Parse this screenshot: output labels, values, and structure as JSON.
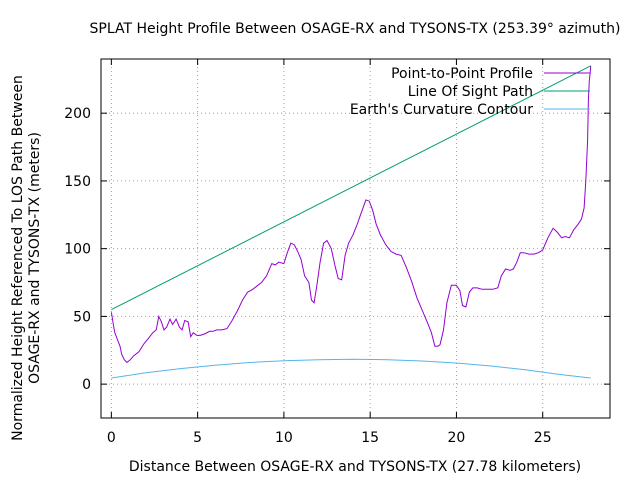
{
  "chart_data": {
    "type": "line",
    "title": "SPLAT Height Profile Between OSAGE-RX and TYSONS-TX (253.39° azimuth)",
    "xlabel": "Distance Between OSAGE-RX and TYSONS-TX (27.78 kilometers)",
    "ylabel_line1": "Normalized Height Referenced To LOS Path Between",
    "ylabel_line2": "OSAGE-RX and TYSONS-TX (meters)",
    "xlim": [
      -0.6,
      28.9
    ],
    "ylim": [
      -25,
      240
    ],
    "xticks": [
      0,
      5,
      10,
      15,
      20,
      25
    ],
    "yticks": [
      0,
      50,
      100,
      150,
      200
    ],
    "grid": true,
    "legend_position": "top-right",
    "series": [
      {
        "name": "Point-to-Point Profile",
        "color": "#9400d3",
        "x": [
          0,
          0.1,
          0.2,
          0.35,
          0.5,
          0.6,
          0.75,
          0.9,
          1.1,
          1.3,
          1.6,
          1.9,
          2.1,
          2.4,
          2.6,
          2.75,
          2.9,
          3.05,
          3.2,
          3.4,
          3.55,
          3.75,
          3.95,
          4.1,
          4.25,
          4.45,
          4.6,
          4.75,
          4.95,
          5.15,
          5.4,
          5.7,
          5.9,
          6.1,
          6.4,
          6.7,
          7.0,
          7.3,
          7.6,
          7.9,
          8.2,
          8.5,
          8.7,
          9.0,
          9.3,
          9.5,
          9.7,
          10.0,
          10.2,
          10.4,
          10.6,
          10.8,
          11.0,
          11.2,
          11.45,
          11.6,
          11.75,
          11.9,
          12.1,
          12.3,
          12.5,
          12.75,
          12.95,
          13.15,
          13.35,
          13.55,
          13.75,
          14.0,
          14.25,
          14.5,
          14.75,
          14.95,
          15.15,
          15.35,
          15.6,
          15.9,
          16.2,
          16.5,
          16.8,
          17.1,
          17.4,
          17.7,
          18.0,
          18.3,
          18.55,
          18.75,
          18.9,
          19.05,
          19.25,
          19.45,
          19.7,
          20.0,
          20.2,
          20.35,
          20.55,
          20.75,
          20.95,
          21.2,
          21.5,
          21.8,
          22.1,
          22.4,
          22.6,
          22.85,
          23.1,
          23.3,
          23.5,
          23.7,
          23.9,
          24.2,
          24.5,
          24.75,
          25.0,
          25.3,
          25.6,
          25.85,
          26.1,
          26.3,
          26.55,
          26.8,
          27.05,
          27.25,
          27.4,
          27.5,
          27.6,
          27.65,
          27.7,
          27.75,
          27.78
        ],
        "y": [
          53,
          45,
          38,
          33,
          28,
          22,
          18,
          16,
          18,
          21,
          24,
          30,
          33,
          38,
          40,
          50,
          46,
          40,
          42,
          48,
          44,
          48,
          42,
          40,
          47,
          46,
          35,
          38,
          36,
          36,
          37,
          39,
          39,
          40,
          40,
          41,
          47,
          54,
          62,
          68,
          70,
          73,
          75,
          80,
          89,
          88,
          90,
          89,
          97,
          104,
          103,
          98,
          92,
          80,
          75,
          62,
          60,
          72,
          90,
          104,
          106,
          100,
          88,
          78,
          77,
          95,
          104,
          110,
          118,
          127,
          136,
          135,
          128,
          118,
          110,
          103,
          98,
          96,
          95,
          86,
          76,
          64,
          55,
          46,
          38,
          28,
          28,
          29,
          40,
          60,
          73,
          73,
          69,
          58,
          57,
          68,
          71,
          71,
          70,
          70,
          70,
          71,
          80,
          85,
          84,
          85,
          90,
          97,
          97,
          96,
          96,
          97,
          99,
          108,
          115,
          112,
          108,
          109,
          108,
          114,
          118,
          122,
          130,
          150,
          180,
          210,
          224,
          230,
          235
        ]
      },
      {
        "name": "Line Of Sight Path",
        "color": "#009e73",
        "x": [
          0,
          27.78
        ],
        "y": [
          55,
          235
        ]
      },
      {
        "name": "Earth's Curvature Contour",
        "color": "#56b4e9",
        "x": [
          0,
          2,
          4,
          6,
          8,
          10,
          12,
          14,
          16,
          18,
          20,
          22,
          24,
          26,
          27.78
        ],
        "y": [
          4.5,
          8.4,
          11.5,
          14.0,
          16.0,
          17.3,
          18.0,
          18.3,
          18.0,
          17.1,
          15.6,
          13.4,
          10.6,
          7.1,
          4.5
        ]
      }
    ]
  }
}
